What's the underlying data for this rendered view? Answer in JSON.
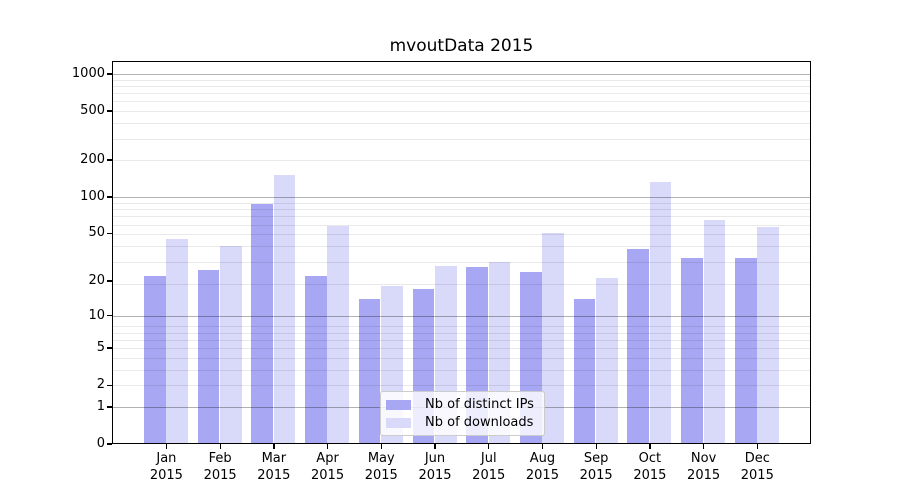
{
  "chart_data": {
    "type": "bar",
    "title": "mvoutData 2015",
    "categories": [
      "Jan",
      "Feb",
      "Mar",
      "Apr",
      "May",
      "Jun",
      "Jul",
      "Aug",
      "Sep",
      "Oct",
      "Nov",
      "Dec"
    ],
    "year_label": "2015",
    "series": [
      {
        "name": "Nb of distinct IPs",
        "color": "#a7a7f3",
        "values": [
          22,
          25,
          87,
          22,
          14,
          17,
          26,
          24,
          14,
          37,
          31,
          31
        ]
      },
      {
        "name": "Nb of downloads",
        "color": "#d9d9fa",
        "values": [
          45,
          39,
          150,
          58,
          18,
          27,
          29,
          50,
          21,
          132,
          64,
          57
        ]
      }
    ],
    "yscale": "log1p",
    "yticks": [
      1000,
      500,
      200,
      100,
      50,
      20,
      10,
      5,
      2,
      1,
      0
    ],
    "ylim": [
      0,
      1275
    ],
    "grid": true,
    "legend_position": "lower center",
    "colors": {
      "distinct_ips": "#a7a7f3",
      "downloads": "#d9d9fa",
      "major_grid": "rgba(0,0,0,0.30)",
      "minor_grid": "rgba(0,0,0,0.085)"
    }
  }
}
